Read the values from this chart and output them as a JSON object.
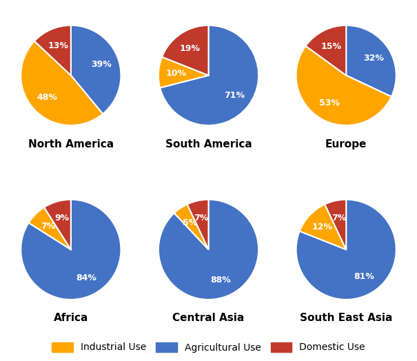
{
  "regions": [
    "North America",
    "South America",
    "Europe",
    "Africa",
    "Central Asia",
    "South East Asia"
  ],
  "data": {
    "North America": [
      39,
      48,
      13
    ],
    "South America": [
      71,
      10,
      19
    ],
    "Europe": [
      32,
      53,
      15
    ],
    "Africa": [
      84,
      7,
      9
    ],
    "Central Asia": [
      88,
      5,
      7
    ],
    "South East Asia": [
      81,
      12,
      7
    ]
  },
  "startangles": {
    "North America": 90,
    "South America": 90,
    "Europe": 90,
    "Africa": 90,
    "Central Asia": 90,
    "South East Asia": 90
  },
  "keys": [
    "Agricultural",
    "Industrial",
    "Domestic"
  ],
  "colors": [
    "#4472C4",
    "#FFA500",
    "#C0392B"
  ],
  "label_color": "white",
  "title_fontsize": 11,
  "label_fontsize": 9,
  "legend_fontsize": 10,
  "background_color": "#FFFFFF",
  "grid_rows": 2,
  "grid_cols": 3,
  "legend_labels": [
    "Industrial Use",
    "Agricultural Use",
    "Domestic Use"
  ],
  "legend_colors": [
    "#FFA500",
    "#4472C4",
    "#C0392B"
  ]
}
